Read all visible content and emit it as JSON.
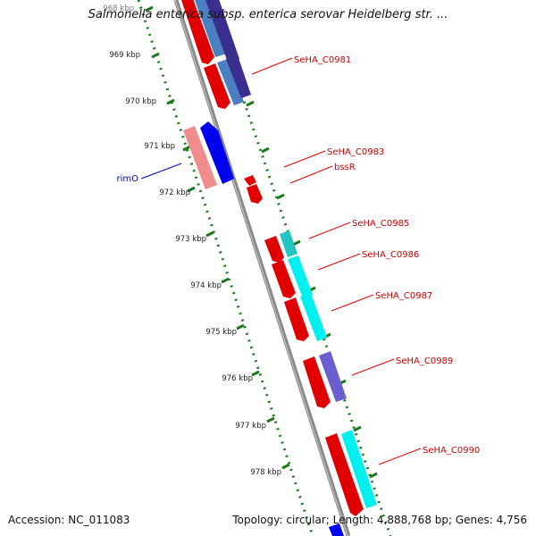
{
  "title": "Salmonella enterica subsp. enterica serovar Heidelberg str. ...",
  "footer": {
    "accession": "Accession: NC_011083",
    "summary": "Topology: circular; Length: 4,888,768 bp; Genes: 4,756"
  },
  "colors": {
    "backbone": "#8a8a8a",
    "ruler": "#1a7a1a",
    "forward_gene": "#ff0000",
    "label_red": "#cc0000",
    "label_blue": "#0000aa"
  },
  "kbp_labels": [
    "968 kbp",
    "969 kbp",
    "970 kbp",
    "971 kbp",
    "972 kbp",
    "973 kbp",
    "974 kbp",
    "975 kbp",
    "976 kbp",
    "977 kbp",
    "978 kbp"
  ],
  "gene_labels": [
    "SeHA_C0981",
    "SeHA_C0983",
    "bssR",
    "SeHA_C0985",
    "SeHA_C0986",
    "SeHA_C0987",
    "SeHA_C0989",
    "SeHA_C0990"
  ],
  "left_gene_label": "rimO"
}
